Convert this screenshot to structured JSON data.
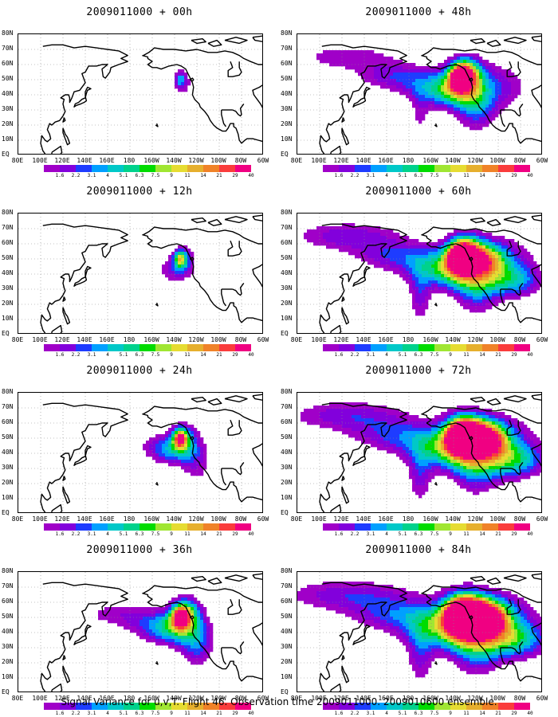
{
  "panels": [
    {
      "title": "2009011000 + 00h",
      "spread": 0.0
    },
    {
      "title": "2009011000 + 48h",
      "spread": 0.57
    },
    {
      "title": "2009011000 + 12h",
      "spread": 0.12
    },
    {
      "title": "2009011000 + 60h",
      "spread": 0.72
    },
    {
      "title": "2009011000 + 24h",
      "spread": 0.26
    },
    {
      "title": "2009011000 + 72h",
      "spread": 0.86
    },
    {
      "title": "2009011000 + 36h",
      "spread": 0.41
    },
    {
      "title": "2009011000 + 84h",
      "spread": 1.0
    }
  ],
  "lat_labels": [
    "80N",
    "70N",
    "60N",
    "50N",
    "40N",
    "30N",
    "20N",
    "10N",
    "EQ"
  ],
  "lon_labels": [
    "80E",
    "100E",
    "120E",
    "140E",
    "160E",
    "180",
    "160W",
    "140W",
    "120W",
    "100W",
    "80W",
    "60W"
  ],
  "colorbar": {
    "ticks": [
      "1.6",
      "2.2",
      "3.1",
      "4",
      "5.1",
      "6.3",
      "7.5",
      "9",
      "11",
      "14",
      "21",
      "29",
      "40"
    ],
    "colors": [
      "#a000c8",
      "#8200dc",
      "#1e3cff",
      "#00a0ff",
      "#00c8c8",
      "#00d28c",
      "#00dc00",
      "#a0e632",
      "#e6dc32",
      "#e6af2d",
      "#f08228",
      "#fa3c3c",
      "#f00082"
    ]
  },
  "caption": "Signal Variance for u,v,T. Flight 46. Observation time 2009011000. 2009010600 ensemble."
}
